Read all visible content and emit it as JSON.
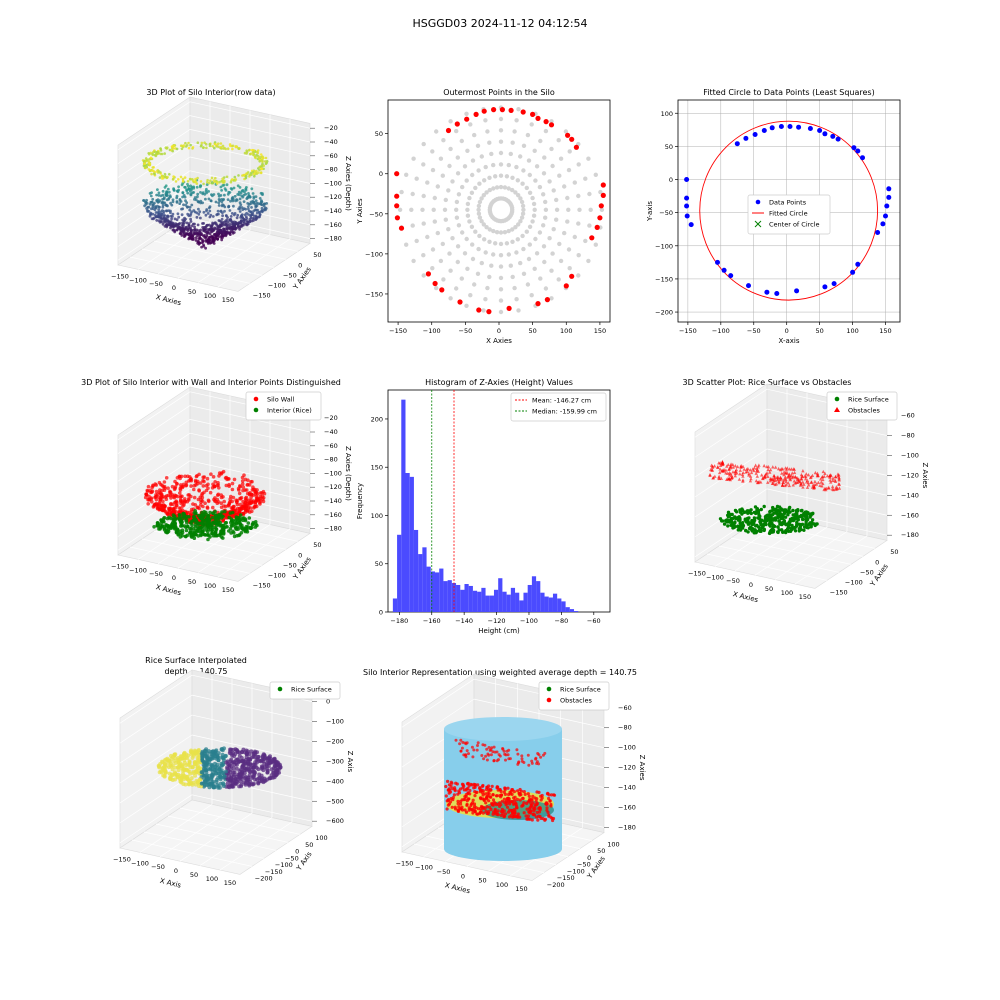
{
  "figure": {
    "suptitle": "HSGGD03 2024-11-12 04:12:54"
  },
  "colors": {
    "wall": "#ff0000",
    "rice": "#008000",
    "hull": "#d3d3d3",
    "data_points": "#0000ff",
    "histogram": "#4b4bff",
    "silo_cylinder": "#87ceeb",
    "surface_yellow": "#e8e14a",
    "surface_purple": "#5a2d82"
  },
  "chart_data": [
    {
      "id": "p1",
      "type": "scatter3d",
      "title": "3D Plot of Silo Interior(row data)",
      "xlabel": "X Axies",
      "ylabel": "Y Axies",
      "zlabel": "Z Axies (Depth)",
      "xticks": [
        "−150",
        "−100",
        "−50",
        "0",
        "50",
        "100",
        "150"
      ],
      "yticks": [
        "50",
        "0",
        "−50",
        "−100",
        "−150"
      ],
      "zticks": [
        "−20",
        "−40",
        "−60",
        "−80",
        "−100",
        "−120",
        "−140",
        "−160",
        "−180"
      ],
      "zlim": [
        -190,
        -15
      ],
      "colormap": "viridis"
    },
    {
      "id": "p2",
      "type": "scatter",
      "title": "Outermost Points in the Silo",
      "xlabel": "X Axies",
      "ylabel": "Y Axies",
      "xlim": [
        -165,
        165
      ],
      "ylim": [
        -185,
        92
      ],
      "xticks": [
        -150,
        -100,
        -50,
        0,
        50,
        100,
        150
      ],
      "yticks": [
        -150,
        -100,
        -50,
        0,
        50
      ],
      "outer_points": [
        [
          -152,
          0
        ],
        [
          -152,
          -28
        ],
        [
          -152,
          -40
        ],
        [
          -151,
          -55
        ],
        [
          -145,
          -68
        ],
        [
          -105,
          -125
        ],
        [
          -95,
          -137
        ],
        [
          -85,
          -145
        ],
        [
          -58,
          -160
        ],
        [
          -30,
          -170
        ],
        [
          -15,
          -172
        ],
        [
          15,
          -168
        ],
        [
          58,
          -162
        ],
        [
          72,
          -157
        ],
        [
          100,
          -140
        ],
        [
          108,
          -128
        ],
        [
          138,
          -80
        ],
        [
          146,
          -67
        ],
        [
          150,
          -55
        ],
        [
          152,
          -40
        ],
        [
          155,
          -27
        ],
        [
          155,
          -14
        ],
        [
          -75,
          54
        ],
        [
          -62,
          62
        ],
        [
          -48,
          68
        ],
        [
          -34,
          74
        ],
        [
          -22,
          78
        ],
        [
          -8,
          80
        ],
        [
          5,
          80
        ],
        [
          18,
          79
        ],
        [
          36,
          77
        ],
        [
          50,
          74
        ],
        [
          58,
          69
        ],
        [
          70,
          65
        ],
        [
          78,
          61
        ],
        [
          102,
          48
        ],
        [
          108,
          43
        ],
        [
          115,
          33
        ]
      ]
    },
    {
      "id": "p3",
      "type": "scatter",
      "title": "Fitted Circle to Data Points (Least Squares)",
      "xlabel": "X-axis",
      "ylabel": "Y-axis",
      "xlim": [
        -165,
        172
      ],
      "ylim": [
        -215,
        120
      ],
      "xticks": [
        -150,
        -100,
        -50,
        0,
        50,
        100,
        150
      ],
      "yticks": [
        -200,
        -150,
        -100,
        -50,
        0,
        50,
        100
      ],
      "circle": {
        "cx": 3,
        "cy": -47,
        "r": 135
      },
      "legend": [
        "Data Points",
        "Fitted Circle",
        "Center of Circle"
      ],
      "legend_loc": "center",
      "grid": true
    },
    {
      "id": "p4",
      "type": "scatter3d",
      "title": "3D Plot of Silo Interior with Wall and Interior Points Distinguished",
      "xlabel": "X Axies",
      "ylabel": "Y Axies",
      "zlabel": "Z Axies (Depth)",
      "xticks": [
        "−150",
        "−100",
        "−50",
        "0",
        "50",
        "100",
        "150"
      ],
      "yticks": [
        "50",
        "0",
        "−50",
        "−100",
        "−150"
      ],
      "zticks": [
        "−20",
        "−40",
        "−60",
        "−80",
        "−100",
        "−120",
        "−140",
        "−160",
        "−180"
      ],
      "legend": [
        "Silo Wall",
        "Interior (Rice)"
      ],
      "legend_loc": "upper right"
    },
    {
      "id": "p5",
      "type": "bar",
      "title": "Histogram of Z-Axies (Height) Values",
      "xlabel": "Height (cm)",
      "ylabel": "Frequency",
      "xlim": [
        -187,
        -50
      ],
      "ylim": [
        0,
        230
      ],
      "xticks": [
        -180,
        -160,
        -140,
        -120,
        -100,
        -80,
        -60
      ],
      "yticks": [
        0,
        50,
        100,
        150,
        200
      ],
      "bin_start": -184,
      "bin_width": 2.6,
      "counts": [
        14,
        80,
        220,
        144,
        140,
        85,
        60,
        67,
        47,
        42,
        41,
        45,
        32,
        33,
        30,
        28,
        23,
        29,
        27,
        22,
        21,
        25,
        17,
        17,
        23,
        35,
        21,
        18,
        25,
        20,
        12,
        20,
        28,
        37,
        32,
        20,
        16,
        15,
        19,
        14,
        11,
        5,
        3,
        1
      ],
      "mean": -146.27,
      "median": -159.99,
      "legend": [
        "Mean: -146.27 cm",
        "Median: -159.99 cm"
      ],
      "legend_loc": "upper right"
    },
    {
      "id": "p6",
      "type": "scatter3d",
      "title": "3D Scatter Plot: Rice Surface vs Obstacles",
      "xlabel": "X Axies",
      "ylabel": "Y Axies",
      "zlabel": "Z Axies",
      "xticks": [
        "−150",
        "−100",
        "−50",
        "0",
        "50",
        "100",
        "150"
      ],
      "yticks": [
        "50",
        "0",
        "−50",
        "−100",
        "−150"
      ],
      "zticks": [
        "−60",
        "−80",
        "−100",
        "−120",
        "−140",
        "−160",
        "−180"
      ],
      "legend": [
        "Rice Surface",
        "Obstacles"
      ],
      "legend_loc": "upper right"
    },
    {
      "id": "p7",
      "type": "surface3d",
      "title": "Rice Surface Interpolated",
      "subtitle": "depth = 140.75",
      "xlabel": "X Axis",
      "ylabel": "Y Axis",
      "zlabel": "Z Axis",
      "xticks": [
        "−150",
        "−100",
        "−50",
        "0",
        "50",
        "100",
        "150"
      ],
      "yticks": [
        "100",
        "50",
        "0",
        "−50",
        "−100",
        "−150",
        "−200"
      ],
      "zticks": [
        "0",
        "−100",
        "−200",
        "−300",
        "−400",
        "−500",
        "−600"
      ],
      "legend": [
        "Rice Surface"
      ],
      "legend_loc": "upper right"
    },
    {
      "id": "p8",
      "type": "scatter3d",
      "title": "Silo Interior Representation using weighted average depth = 140.75",
      "xlabel": "X Axies",
      "ylabel": "Y Axies",
      "zlabel": "Z Axies",
      "xticks": [
        "−150",
        "−100",
        "−50",
        "0",
        "50",
        "100",
        "150"
      ],
      "yticks": [
        "100",
        "50",
        "0",
        "−50",
        "−100",
        "−150",
        "−200"
      ],
      "zticks": [
        "−60",
        "−80",
        "−100",
        "−120",
        "−140",
        "−160",
        "−180"
      ],
      "legend": [
        "Rice Surface",
        "Obstacles"
      ],
      "legend_loc": "upper left"
    }
  ]
}
